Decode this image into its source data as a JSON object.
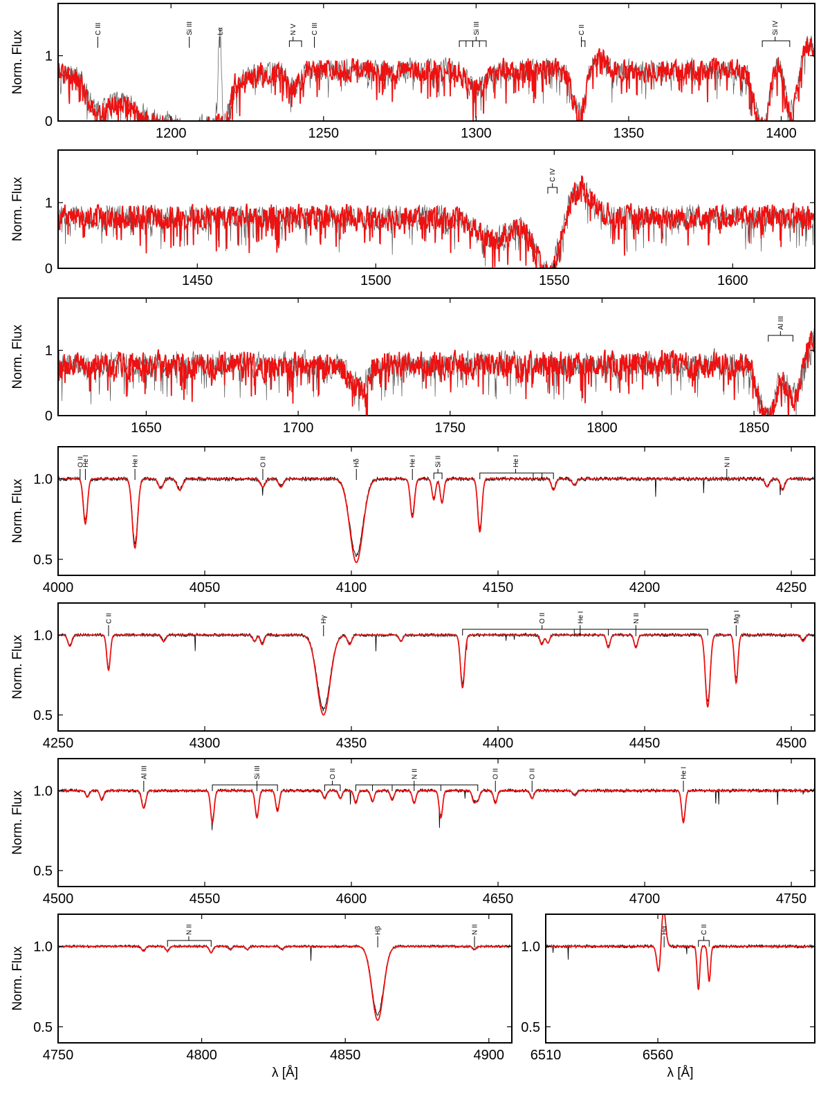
{
  "colors": {
    "observed": "#000000",
    "model": "#ee1111"
  },
  "chart_data": [
    {
      "type": "line",
      "xlim": [
        1163,
        1411
      ],
      "ylim": [
        0,
        1.8
      ],
      "xticks": [
        1200,
        1250,
        1300,
        1350,
        1400
      ],
      "yticks": [
        0,
        1
      ],
      "ylabel": "Norm. Flux",
      "xlabel": "",
      "observed_style": "thin-gray",
      "features": [
        {
          "x": 1176,
          "depth": 0.45,
          "width": 3
        },
        {
          "x": 1198,
          "depth": 0.85,
          "width": 14,
          "band": [
            1195,
            1222
          ]
        },
        {
          "x": 1206,
          "depth": 0.3,
          "width": 2
        },
        {
          "x": 1240,
          "depth": 0.25,
          "width": 2
        },
        {
          "x": 1300,
          "depth": 0.3,
          "width": 3
        },
        {
          "x": 1334,
          "depth": 0.75,
          "width": 2.2,
          "pcygni": 0.25
        },
        {
          "x": 1394,
          "depth": 0.95,
          "width": 2.5,
          "pcygni": 0.45
        },
        {
          "x": 1403,
          "depth": 0.95,
          "width": 2.5,
          "pcygni": 0.45
        }
      ],
      "base": 0.78,
      "noise": 0.28,
      "emission": [
        {
          "x": 1216,
          "height": 1.4,
          "width": 0.5
        }
      ],
      "lines": [
        {
          "x": 1176,
          "label": "C III"
        },
        {
          "x": 1206,
          "label": "Si III"
        },
        {
          "x": 1216,
          "label": "Lα"
        },
        {
          "x": 1240,
          "label": "N V",
          "bracket": [
            1238.8,
            1242.8
          ]
        },
        {
          "x": 1247,
          "label": "C III"
        },
        {
          "x": 1300,
          "label": "Si III",
          "bracket": [
            1294.5,
            1303.3
          ],
          "sub": [
            1296.7,
            1298.9,
            1301.1
          ]
        },
        {
          "x": 1334.5,
          "label": "C II",
          "bracket": [
            1334.5,
            1335.7
          ]
        },
        {
          "x": 1398,
          "label": "Si IV",
          "bracket": [
            1393.8,
            1402.8
          ]
        }
      ]
    },
    {
      "type": "line",
      "xlim": [
        1411,
        1623
      ],
      "ylim": [
        0,
        1.8
      ],
      "xticks": [
        1450,
        1500,
        1550,
        1600
      ],
      "yticks": [
        0,
        1
      ],
      "ylabel": "Norm. Flux",
      "xlabel": "",
      "features": [
        {
          "x": 1548.5,
          "depth": 0.95,
          "width": 3.5,
          "pcygni": 0.5
        },
        {
          "x": 1533,
          "depth": 0.35,
          "width": 5
        }
      ],
      "base": 0.78,
      "noise": 0.3,
      "emission": [],
      "lines": [
        {
          "x": 1549.5,
          "label": "C IV",
          "bracket": [
            1548.2,
            1550.8
          ]
        }
      ]
    },
    {
      "type": "line",
      "xlim": [
        1621,
        1870
      ],
      "ylim": [
        0,
        1.8
      ],
      "xticks": [
        1650,
        1700,
        1750,
        1800,
        1850
      ],
      "yticks": [
        0,
        1
      ],
      "ylabel": "Norm. Flux",
      "xlabel": "",
      "features": [
        {
          "x": 1854.7,
          "depth": 0.9,
          "width": 2.8,
          "pcygni": 0.4
        },
        {
          "x": 1862.8,
          "depth": 0.9,
          "width": 2.8,
          "pcygni": 0.45
        },
        {
          "x": 1720,
          "depth": 0.35,
          "width": 3
        }
      ],
      "base": 0.78,
      "noise": 0.32,
      "emission": [],
      "lines": [
        {
          "x": 1858.7,
          "label": "Al III",
          "bracket": [
            1854.7,
            1862.8
          ]
        }
      ]
    },
    {
      "type": "line",
      "xlim": [
        4000,
        4258
      ],
      "ylim": [
        0.4,
        1.2
      ],
      "xticks": [
        4000,
        4050,
        4100,
        4150,
        4200,
        4250
      ],
      "yticks": [
        0.5,
        1.0
      ],
      "ylabel": "Norm. Flux",
      "xlabel": "",
      "features": [
        {
          "x": 4009.3,
          "depth": 0.28,
          "width": 0.7
        },
        {
          "x": 4026.2,
          "depth": 0.43,
          "width": 0.9
        },
        {
          "x": 4035,
          "depth": 0.06,
          "width": 0.8
        },
        {
          "x": 4041.5,
          "depth": 0.07,
          "width": 0.9
        },
        {
          "x": 4069.8,
          "depth": 0.05,
          "width": 0.8
        },
        {
          "x": 4076,
          "depth": 0.05,
          "width": 0.8
        },
        {
          "x": 4101.7,
          "depth": 0.52,
          "width": 2.2
        },
        {
          "x": 4120.8,
          "depth": 0.24,
          "width": 0.7
        },
        {
          "x": 4128.1,
          "depth": 0.13,
          "width": 0.6
        },
        {
          "x": 4130.9,
          "depth": 0.15,
          "width": 0.6
        },
        {
          "x": 4143.8,
          "depth": 0.33,
          "width": 0.7
        },
        {
          "x": 4168.9,
          "depth": 0.07,
          "width": 0.7
        },
        {
          "x": 4176,
          "depth": 0.04,
          "width": 0.7
        },
        {
          "x": 4241.8,
          "depth": 0.05,
          "width": 0.7
        },
        {
          "x": 4247,
          "depth": 0.07,
          "width": 0.7
        }
      ],
      "base": 1.0,
      "noise": 0.012,
      "emission": [],
      "lines": [
        {
          "x": 4007.5,
          "label": "O II"
        },
        {
          "x": 4009.3,
          "label": "He I"
        },
        {
          "x": 4026.2,
          "label": "He I"
        },
        {
          "x": 4069.8,
          "label": "O II"
        },
        {
          "x": 4101.7,
          "label": "Hδ"
        },
        {
          "x": 4120.8,
          "label": "He I"
        },
        {
          "x": 4129.5,
          "label": "Si II",
          "bracket": [
            4128.1,
            4130.9
          ]
        },
        {
          "x": 4156,
          "label": "He I",
          "bracket": [
            4143.8,
            4168.9
          ],
          "sub": [
            4162,
            4165
          ]
        },
        {
          "x": 4228,
          "label": "N II"
        }
      ]
    },
    {
      "type": "line",
      "xlim": [
        4250,
        4508
      ],
      "ylim": [
        0.4,
        1.2
      ],
      "xticks": [
        4250,
        4300,
        4350,
        4400,
        4450,
        4500
      ],
      "yticks": [
        0.5,
        1.0
      ],
      "ylabel": "Norm. Flux",
      "xlabel": "",
      "features": [
        {
          "x": 4254,
          "depth": 0.07,
          "width": 0.7
        },
        {
          "x": 4267.2,
          "depth": 0.22,
          "width": 0.6
        },
        {
          "x": 4286,
          "depth": 0.04,
          "width": 0.7
        },
        {
          "x": 4317,
          "depth": 0.04,
          "width": 0.6
        },
        {
          "x": 4319.6,
          "depth": 0.06,
          "width": 0.6
        },
        {
          "x": 4340.5,
          "depth": 0.5,
          "width": 2.2
        },
        {
          "x": 4349.4,
          "depth": 0.06,
          "width": 0.7
        },
        {
          "x": 4366.9,
          "depth": 0.04,
          "width": 0.6
        },
        {
          "x": 4387.9,
          "depth": 0.33,
          "width": 0.7
        },
        {
          "x": 4414.9,
          "depth": 0.06,
          "width": 0.6
        },
        {
          "x": 4417,
          "depth": 0.05,
          "width": 0.6
        },
        {
          "x": 4437.6,
          "depth": 0.08,
          "width": 0.6
        },
        {
          "x": 4447,
          "depth": 0.08,
          "width": 0.6
        },
        {
          "x": 4471.5,
          "depth": 0.45,
          "width": 0.8
        },
        {
          "x": 4481.2,
          "depth": 0.3,
          "width": 0.6
        },
        {
          "x": 4504,
          "depth": 0.04,
          "width": 0.6
        }
      ],
      "base": 1.0,
      "noise": 0.01,
      "emission": [],
      "lines": [
        {
          "x": 4267.2,
          "label": "C II"
        },
        {
          "x": 4340.5,
          "label": "Hγ"
        },
        {
          "x": 4415,
          "label": "O II",
          "bracket": [
            4387.9,
            4471.5
          ],
          "sub": [
            4437.6,
            4426
          ]
        },
        {
          "x": 4428,
          "label": "He I"
        },
        {
          "x": 4447,
          "label": "N II"
        },
        {
          "x": 4481.2,
          "label": "Mg I"
        }
      ]
    },
    {
      "type": "line",
      "xlim": [
        4500,
        4758
      ],
      "ylim": [
        0.4,
        1.2
      ],
      "xticks": [
        4500,
        4550,
        4600,
        4650,
        4700,
        4750
      ],
      "yticks": [
        0.5,
        1.0
      ],
      "ylabel": "Norm. Flux",
      "xlabel": "",
      "features": [
        {
          "x": 4510,
          "depth": 0.04,
          "width": 0.6
        },
        {
          "x": 4514.9,
          "depth": 0.06,
          "width": 0.6
        },
        {
          "x": 4529.2,
          "depth": 0.11,
          "width": 0.7
        },
        {
          "x": 4552.6,
          "depth": 0.2,
          "width": 0.6
        },
        {
          "x": 4567.8,
          "depth": 0.17,
          "width": 0.6
        },
        {
          "x": 4574.8,
          "depth": 0.13,
          "width": 0.6
        },
        {
          "x": 4590.9,
          "depth": 0.05,
          "width": 0.6
        },
        {
          "x": 4596.2,
          "depth": 0.05,
          "width": 0.6
        },
        {
          "x": 4601.5,
          "depth": 0.08,
          "width": 0.6
        },
        {
          "x": 4607.2,
          "depth": 0.07,
          "width": 0.6
        },
        {
          "x": 4613.9,
          "depth": 0.06,
          "width": 0.6
        },
        {
          "x": 4621.4,
          "depth": 0.08,
          "width": 0.6
        },
        {
          "x": 4630.5,
          "depth": 0.17,
          "width": 0.6
        },
        {
          "x": 4641.8,
          "depth": 0.07,
          "width": 0.6
        },
        {
          "x": 4643.1,
          "depth": 0.06,
          "width": 0.6
        },
        {
          "x": 4649.1,
          "depth": 0.08,
          "width": 0.6
        },
        {
          "x": 4661.6,
          "depth": 0.05,
          "width": 0.6
        },
        {
          "x": 4676.2,
          "depth": 0.03,
          "width": 0.7
        },
        {
          "x": 4713.2,
          "depth": 0.2,
          "width": 0.6
        }
      ],
      "base": 1.0,
      "noise": 0.01,
      "emission": [],
      "lines": [
        {
          "x": 4529.2,
          "label": "Al III"
        },
        {
          "x": 4567.8,
          "label": "Si III",
          "bracket": [
            4552.6,
            4574.8
          ],
          "sub": [
            4567.8
          ]
        },
        {
          "x": 4593.5,
          "label": "O II",
          "bracket": [
            4590.9,
            4596.2
          ]
        },
        {
          "x": 4621.4,
          "label": "N II",
          "bracket": [
            4601.5,
            4643.1
          ],
          "sub": [
            4607.2,
            4613.9,
            4621.4,
            4630.5
          ]
        },
        {
          "x": 4649.1,
          "label": "O II"
        },
        {
          "x": 4661.6,
          "label": "O II"
        },
        {
          "x": 4713.2,
          "label": "He I"
        }
      ]
    },
    {
      "type": "line",
      "xlim": [
        4750,
        4908
      ],
      "ylim": [
        0.4,
        1.2
      ],
      "xticks": [
        4750,
        4800,
        4850,
        4900
      ],
      "yticks": [
        0.5,
        1.0
      ],
      "ylabel": "Norm. Flux",
      "xlabel": "λ [Å]",
      "features": [
        {
          "x": 4779.7,
          "depth": 0.03,
          "width": 0.6
        },
        {
          "x": 4788.1,
          "depth": 0.03,
          "width": 0.6
        },
        {
          "x": 4803.3,
          "depth": 0.04,
          "width": 0.6
        },
        {
          "x": 4810,
          "depth": 0.02,
          "width": 0.6
        },
        {
          "x": 4815.9,
          "depth": 0.02,
          "width": 0.6
        },
        {
          "x": 4828,
          "depth": 0.02,
          "width": 0.6
        },
        {
          "x": 4861.3,
          "depth": 0.46,
          "width": 2.0
        },
        {
          "x": 4895,
          "depth": 0.02,
          "width": 0.6
        }
      ],
      "base": 1.0,
      "noise": 0.008,
      "emission": [],
      "lines": [
        {
          "x": 4795.5,
          "label": "N II",
          "bracket": [
            4788.1,
            4803.3
          ]
        },
        {
          "x": 4861.3,
          "label": "Hβ"
        },
        {
          "x": 4895,
          "label": "N II"
        }
      ]
    },
    {
      "type": "line",
      "xlim": [
        6510,
        6630
      ],
      "ylim": [
        0.4,
        1.2
      ],
      "xticks": [
        6510,
        6560
      ],
      "yticks": [
        0.5,
        1.0
      ],
      "ylabel": "",
      "xlabel": "λ [Å]",
      "features": [
        {
          "x": 6560.5,
          "depth": 0.18,
          "width": 0.9,
          "pcygni": 0.24
        },
        {
          "x": 6578.1,
          "depth": 0.27,
          "width": 0.6
        },
        {
          "x": 6582.9,
          "depth": 0.22,
          "width": 0.6
        }
      ],
      "base": 1.0,
      "noise": 0.01,
      "emission": [],
      "lines": [
        {
          "x": 6562.8,
          "label": "Hα"
        },
        {
          "x": 6580.5,
          "label": "C II",
          "bracket": [
            6578.1,
            6582.9
          ]
        }
      ]
    }
  ]
}
